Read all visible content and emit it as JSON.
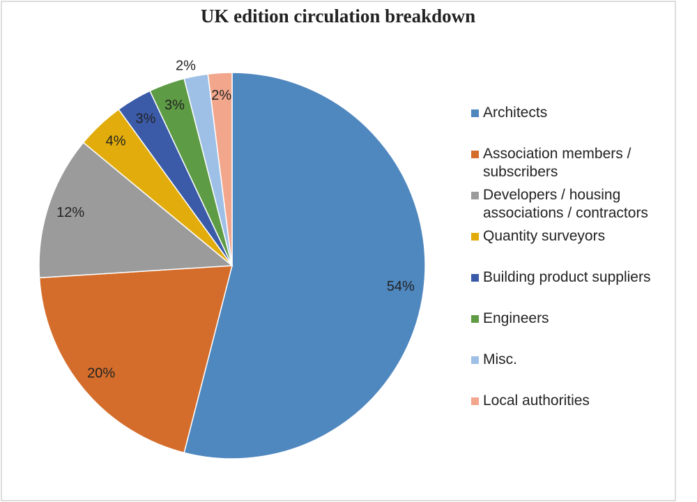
{
  "chart_data": {
    "type": "pie",
    "title": "UK edition circulation breakdown",
    "categories": [
      "Architects",
      "Association members / subscribers",
      "Developers / housing associations / contractors",
      "Quantity surveyors",
      "Building product suppliers",
      "Engineers",
      "Misc.",
      "Local authorities"
    ],
    "values": [
      54,
      20,
      12,
      4,
      3,
      3,
      2,
      2
    ],
    "value_labels": [
      "54%",
      "20%",
      "12%",
      "4%",
      "3%",
      "3%",
      "2%",
      "2%"
    ],
    "colors": [
      "#4f87bf",
      "#d46d2b",
      "#9b9b9b",
      "#e2ad0c",
      "#3b5ba8",
      "#5d9b45",
      "#9fc0e6",
      "#f2a68c"
    ],
    "legend": "right"
  }
}
